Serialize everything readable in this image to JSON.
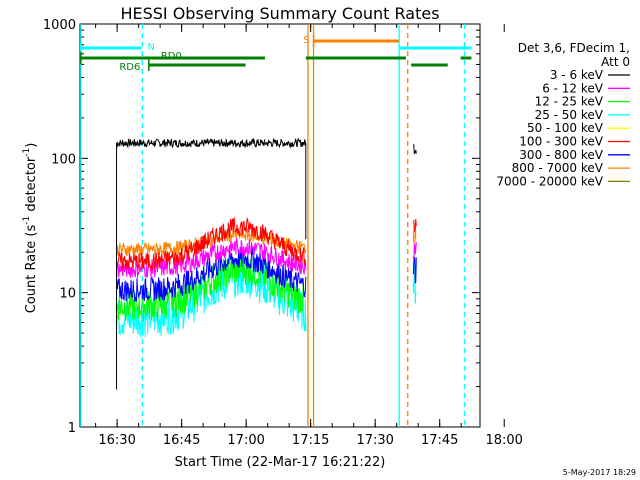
{
  "chart_data": {
    "type": "line",
    "title": "HESSI Observing Summary Count Rates",
    "xlabel": "Start Time (22-Mar-17 16:21:22)",
    "ylabel_main": "Count Rate (s",
    "ylabel_sup1": "-1",
    "ylabel_mid": " detector",
    "ylabel_sup2": "-1",
    "ylabel_end": ")",
    "yscale": "log",
    "ylim": [
      1,
      1000
    ],
    "xlim_min": [
      0,
      93
    ],
    "y_ticks": [
      {
        "value": 1,
        "label": "1"
      },
      {
        "value": 10,
        "label": "10"
      },
      {
        "value": 100,
        "label": "100"
      },
      {
        "value": 1000,
        "label": "1000"
      }
    ],
    "x_ticks": [
      {
        "t": 8.63,
        "label": "16:30"
      },
      {
        "t": 23.63,
        "label": "16:45"
      },
      {
        "t": 38.63,
        "label": "17:00"
      },
      {
        "t": 53.63,
        "label": "17:15"
      },
      {
        "t": 68.63,
        "label": "17:30"
      },
      {
        "t": 83.63,
        "label": "17:45"
      },
      {
        "t": 98.63,
        "label": "18:00"
      }
    ],
    "legend": {
      "header1": "Det 3,6, FDecim 1,",
      "header2": "Att 0",
      "entries": [
        {
          "label": "3 - 6 keV",
          "color": "#000000"
        },
        {
          "label": "6 - 12 keV",
          "color": "#ff00ff"
        },
        {
          "label": "12 - 25 keV",
          "color": "#00ff00"
        },
        {
          "label": "25 - 50 keV",
          "color": "#00ffff"
        },
        {
          "label": "50 - 100 keV",
          "color": "#ffff00"
        },
        {
          "label": "100 - 300 keV",
          "color": "#ff0000"
        },
        {
          "label": "300 - 800 keV",
          "color": "#0000ff"
        },
        {
          "label": "800 - 7000 keV",
          "color": "#ff8000"
        },
        {
          "label": "7000 - 20000 keV",
          "color": "#808000"
        }
      ]
    },
    "series": [
      {
        "name": "3 - 6 keV",
        "color": "#000000",
        "segments": [
          {
            "start": 8.5,
            "end": 43,
            "base": 130,
            "peak": 130,
            "noise": 0.03
          },
          {
            "start": 43,
            "end": 52.5,
            "base": 130,
            "peak": 130,
            "noise": 0.03
          },
          {
            "start": 77.5,
            "end": 78.2,
            "base": 120,
            "peak": 120,
            "noise": 0.05
          }
        ]
      },
      {
        "name": "25 - 50 keV",
        "color": "#00ffff",
        "segments": [
          {
            "start": 8.5,
            "end": 52.5,
            "base": 6.5,
            "peak": 13,
            "noise": 0.15
          },
          {
            "start": 77.5,
            "end": 78.2,
            "base": 12,
            "peak": 12,
            "noise": 0.2
          }
        ]
      },
      {
        "name": "12 - 25 keV",
        "color": "#00ff00",
        "segments": [
          {
            "start": 8.5,
            "end": 52.5,
            "base": 8,
            "peak": 15,
            "noise": 0.12
          }
        ]
      },
      {
        "name": "300 - 800 keV",
        "color": "#0000ff",
        "segments": [
          {
            "start": 8.5,
            "end": 52.5,
            "base": 10.5,
            "peak": 18,
            "noise": 0.09
          },
          {
            "start": 77.5,
            "end": 78.2,
            "base": 15,
            "peak": 15,
            "noise": 0.15
          }
        ]
      },
      {
        "name": "6 - 12 keV",
        "color": "#ff00ff",
        "segments": [
          {
            "start": 8.5,
            "end": 52.5,
            "base": 15,
            "peak": 22,
            "noise": 0.07
          },
          {
            "start": 77.5,
            "end": 78.2,
            "base": 22,
            "peak": 22,
            "noise": 0.1
          }
        ]
      },
      {
        "name": "800 - 7000 keV",
        "color": "#ff8000",
        "segments": [
          {
            "start": 8.5,
            "end": 52.5,
            "base": 21,
            "peak": 27,
            "noise": 0.05
          },
          {
            "start": 77.5,
            "end": 78.2,
            "base": 28,
            "peak": 28,
            "noise": 0.08
          }
        ]
      },
      {
        "name": "100 - 300 keV",
        "color": "#ff0000",
        "segments": [
          {
            "start": 8.5,
            "end": 52.5,
            "base": 17,
            "peak": 31,
            "noise": 0.07
          },
          {
            "start": 77.5,
            "end": 78.2,
            "base": 32,
            "peak": 32,
            "noise": 0.08
          }
        ]
      }
    ],
    "vlines": [
      {
        "t": 0.2,
        "color": "#00ffff",
        "dash": false
      },
      {
        "t": 14.5,
        "color": "#00ffff",
        "dash": true
      },
      {
        "t": 53.0,
        "color": "#ff8000",
        "dash": false
      },
      {
        "t": 54.3,
        "color": "#ff8000",
        "dash": false
      },
      {
        "t": 74.2,
        "color": "#00ffff",
        "dash": false
      },
      {
        "t": 76.2,
        "color": "#ff8000",
        "dash": true
      },
      {
        "t": 89.4,
        "color": "#00ffff",
        "dash": true
      }
    ],
    "flag_bars": [
      {
        "label": "N",
        "color": "#00ffff",
        "level": 0,
        "spans": [
          [
            0.2,
            14.3
          ],
          [
            74.3,
            91.0
          ]
        ]
      },
      {
        "label": "S",
        "color": "#ff8000",
        "level": -1,
        "spans": [
          [
            54.3,
            74.1
          ]
        ]
      },
      {
        "label": "RD0",
        "color": "#008000",
        "level": 1,
        "spans": [
          [
            0.2,
            43.0
          ],
          [
            52.5,
            75.8
          ],
          [
            88.5,
            91.0
          ]
        ]
      },
      {
        "label": "RD6",
        "color": "#008000",
        "level": 2,
        "spans": [
          [
            16.0,
            38.5
          ],
          [
            77.0,
            85.5
          ]
        ]
      }
    ],
    "footer_date": "5-May-2017 18:29"
  }
}
